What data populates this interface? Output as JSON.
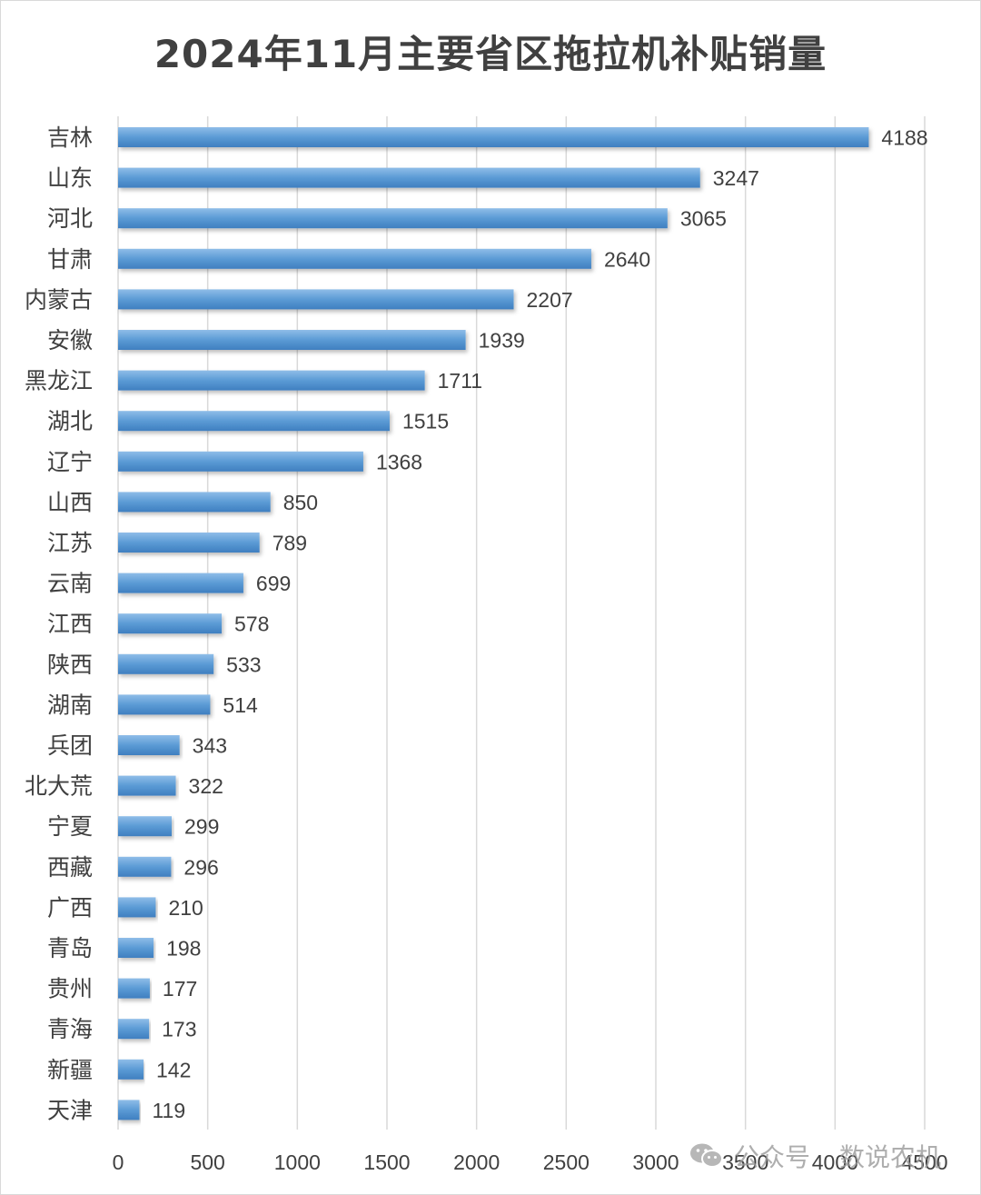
{
  "chart_data": {
    "type": "bar",
    "orientation": "horizontal",
    "title": "2024年11月主要省区拖拉机补贴销量",
    "categories": [
      "吉林",
      "山东",
      "河北",
      "甘肃",
      "内蒙古",
      "安徽",
      "黑龙江",
      "湖北",
      "辽宁",
      "山西",
      "江苏",
      "云南",
      "江西",
      "陕西",
      "湖南",
      "兵团",
      "北大荒",
      "宁夏",
      "西藏",
      "广西",
      "青岛",
      "贵州",
      "青海",
      "新疆",
      "天津"
    ],
    "values": [
      4188,
      3247,
      3065,
      2640,
      2207,
      1939,
      1711,
      1515,
      1368,
      850,
      789,
      699,
      578,
      533,
      514,
      343,
      322,
      299,
      296,
      210,
      198,
      177,
      173,
      142,
      119
    ],
    "xlim": [
      0,
      4500
    ],
    "xticks": [
      0,
      500,
      1000,
      1500,
      2000,
      2500,
      3000,
      3500,
      4000,
      4500
    ],
    "grid": true,
    "data_labels": true,
    "legend": "none"
  },
  "colors": {
    "bar_light": "#8fbde8",
    "bar": "#5b9bd5",
    "bar_dark": "#3f7fc0",
    "grid": "#d9d9d9",
    "text": "#404040"
  },
  "watermark": {
    "icon": "wechat-icon",
    "label": "公众号",
    "name": "数说农机"
  }
}
